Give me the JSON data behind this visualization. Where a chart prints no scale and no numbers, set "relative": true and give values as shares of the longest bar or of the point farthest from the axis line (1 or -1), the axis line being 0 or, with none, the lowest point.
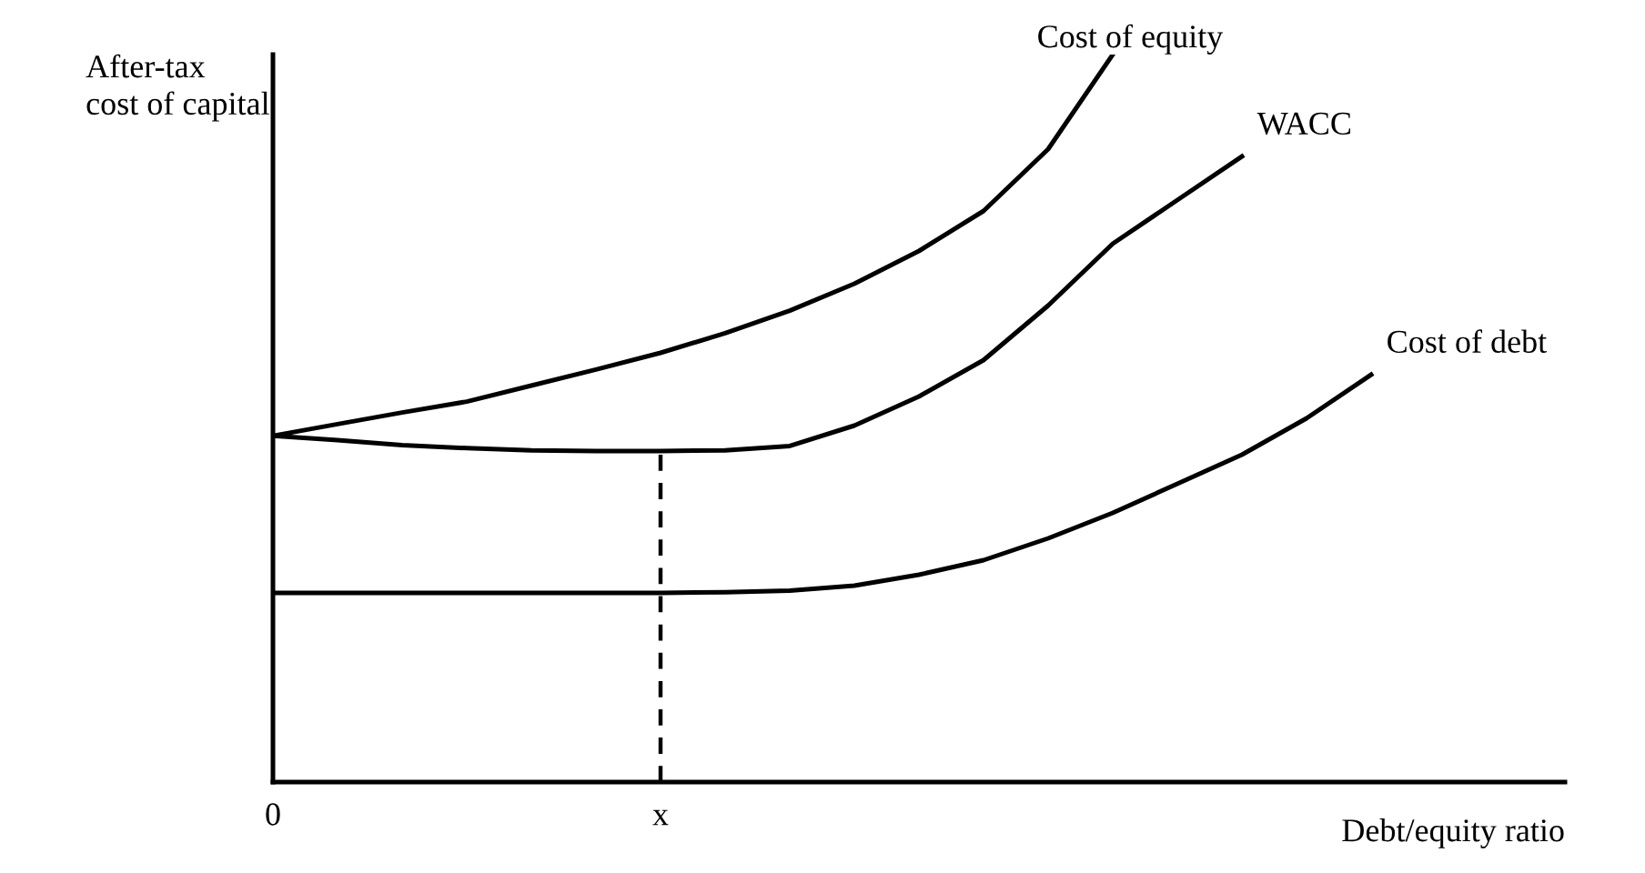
{
  "chart_data": {
    "type": "line",
    "relative": true,
    "ylabel": "After-tax\ncost of capital",
    "xlabel": "Debt/equity ratio",
    "categories": [
      "0",
      null,
      null,
      null,
      null,
      null,
      "x",
      null,
      null,
      null,
      null,
      null,
      null,
      null,
      null,
      null,
      null,
      null,
      null,
      null,
      null
    ],
    "grid": false,
    "legend": false,
    "marker": "none",
    "ref_lines": [
      {
        "axis": "x",
        "value": "x",
        "color": "#000000",
        "line_style": "dashed"
      }
    ],
    "series": [
      {
        "name": "Cost of equity",
        "color": "#000000",
        "values": [
          0.476,
          0.492,
          0.508,
          0.523,
          0.545,
          0.567,
          0.59,
          0.617,
          0.648,
          0.685,
          0.73,
          0.785,
          0.87,
          1.0,
          null,
          null,
          null,
          null,
          null,
          null,
          null
        ]
      },
      {
        "name": "WACC",
        "color": "#000000",
        "values": [
          0.476,
          0.47,
          0.463,
          0.459,
          0.456,
          0.455,
          0.455,
          0.456,
          0.462,
          0.49,
          0.53,
          0.58,
          0.655,
          0.74,
          0.8,
          0.86,
          null,
          null,
          null,
          null,
          null
        ]
      },
      {
        "name": "Cost of debt",
        "color": "#000000",
        "values": [
          0.26,
          0.26,
          0.26,
          0.26,
          0.26,
          0.26,
          0.26,
          0.261,
          0.263,
          0.27,
          0.285,
          0.305,
          0.335,
          0.37,
          0.41,
          0.45,
          0.5,
          0.56,
          null,
          null,
          null
        ]
      }
    ]
  }
}
